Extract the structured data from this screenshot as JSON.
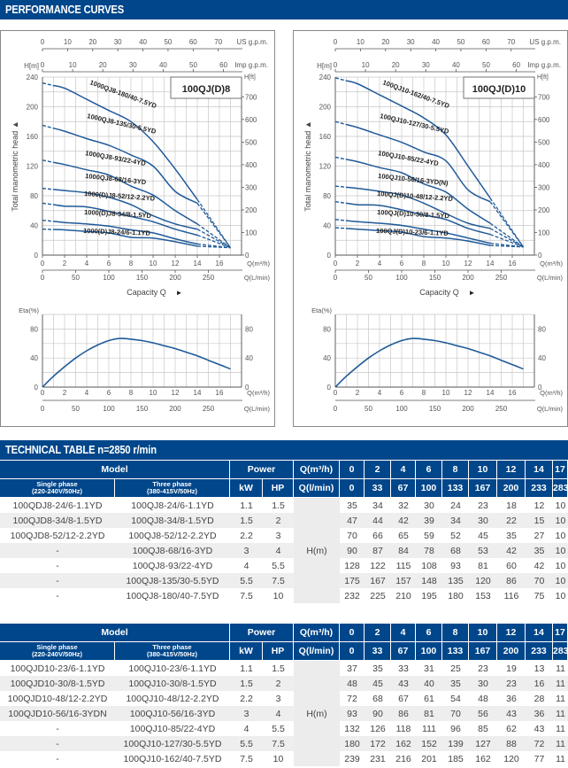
{
  "sections": {
    "performance_title": "PERFORMANCE CURVES",
    "technical_title": "TECHNICAL TABLE n=2850 r/min"
  },
  "chart_data": [
    {
      "type": "line",
      "title": "100QJ(D)8",
      "ylabel": "Total manometric head",
      "xlabel": "Capacity Q",
      "y_left_label": "H[m]",
      "y_right_label": "H[ft]",
      "ylim": [
        0,
        240
      ],
      "xlim": [
        0,
        18
      ],
      "y_ticks": [
        0,
        40,
        80,
        120,
        160,
        200,
        240
      ],
      "y_ft_ticks": [
        0,
        100,
        200,
        300,
        400,
        500,
        600,
        700
      ],
      "x_ticks_m3h": [
        0,
        2,
        4,
        6,
        8,
        10,
        12,
        14,
        16
      ],
      "x_ticks_lmin": [
        0,
        50,
        100,
        150,
        200,
        250
      ],
      "us_gpm_ticks": [
        0,
        10,
        20,
        30,
        40,
        50,
        60,
        70
      ],
      "imp_gpm_ticks": [
        0,
        10,
        20,
        30,
        40,
        50,
        60
      ],
      "axis_units": {
        "m3h": "Q(m³/h)",
        "lmin": "Q(L/min)",
        "us": "US g.p.m.",
        "imp": "Imp g.p.m."
      },
      "x": [
        0,
        2,
        4,
        6,
        8,
        10,
        12,
        14,
        17
      ],
      "series": [
        {
          "name": "1000QJ8-180/40-7.5YD",
          "values": [
            232,
            225,
            210,
            195,
            180,
            153,
            116,
            75,
            10
          ]
        },
        {
          "name": "1000QJ8-135/30-5.5YD",
          "values": [
            175,
            167,
            157,
            148,
            135,
            120,
            86,
            70,
            10
          ]
        },
        {
          "name": "1000QJ8-93/22-4YD",
          "values": [
            128,
            122,
            115,
            108,
            93,
            81,
            60,
            42,
            10
          ]
        },
        {
          "name": "1000QJ8-68/16-3YD",
          "values": [
            90,
            87,
            84,
            78,
            68,
            53,
            42,
            35,
            10
          ]
        },
        {
          "name": "1000(D)J8-52/12-2.2YD",
          "values": [
            70,
            66,
            65,
            59,
            52,
            45,
            35,
            27,
            10
          ]
        },
        {
          "name": "1000(D)J8-34/8-1.5YD",
          "values": [
            47,
            44,
            42,
            39,
            34,
            30,
            22,
            15,
            10
          ]
        },
        {
          "name": "1000(D)J8-24/6-1.1YD",
          "values": [
            35,
            34,
            32,
            30,
            24,
            23,
            18,
            12,
            10
          ]
        }
      ],
      "efficiency": {
        "ylabel": "Eta(%)",
        "ylim": [
          0,
          100
        ],
        "y_ticks": [
          0,
          40,
          80
        ],
        "x": [
          0,
          1,
          2,
          3,
          4,
          5,
          6,
          7,
          8,
          9,
          10,
          11,
          12,
          13,
          14,
          15,
          16,
          17
        ],
        "values": [
          0,
          15,
          28,
          40,
          50,
          58,
          64,
          67,
          66,
          64,
          61,
          57,
          53,
          48,
          43,
          37,
          31,
          25
        ]
      }
    },
    {
      "type": "line",
      "title": "100QJ(D)10",
      "ylabel": "Total manometric head",
      "xlabel": "Capacity Q",
      "y_left_label": "H[m]",
      "y_right_label": "H[ft]",
      "ylim": [
        0,
        240
      ],
      "xlim": [
        0,
        18
      ],
      "y_ticks": [
        0,
        40,
        80,
        120,
        160,
        200,
        240
      ],
      "y_ft_ticks": [
        0,
        100,
        200,
        300,
        400,
        500,
        600,
        700
      ],
      "x_ticks_m3h": [
        0,
        2,
        4,
        6,
        8,
        10,
        12,
        14,
        16
      ],
      "x_ticks_lmin": [
        0,
        50,
        100,
        150,
        200,
        250
      ],
      "us_gpm_ticks": [
        0,
        10,
        20,
        30,
        40,
        50,
        60,
        70
      ],
      "imp_gpm_ticks": [
        0,
        10,
        20,
        30,
        40,
        50,
        60
      ],
      "axis_units": {
        "m3h": "Q(m³/h)",
        "lmin": "Q(L/min)",
        "us": "US g.p.m.",
        "imp": "Imp g.p.m."
      },
      "x": [
        0,
        2,
        4,
        6,
        8,
        10,
        12,
        14,
        17
      ],
      "series": [
        {
          "name": "100QJ10-162/40-7.5YD",
          "values": [
            239,
            231,
            216,
            201,
            185,
            162,
            120,
            77,
            11
          ]
        },
        {
          "name": "100QJ10-127/30-5.5YD",
          "values": [
            180,
            172,
            162,
            152,
            139,
            127,
            88,
            72,
            11
          ]
        },
        {
          "name": "100QJ10-85/22-4YD",
          "values": [
            132,
            126,
            118,
            111,
            96,
            85,
            62,
            43,
            11
          ]
        },
        {
          "name": "100QJ10-56/16-3YD(N)",
          "values": [
            93,
            90,
            86,
            81,
            70,
            56,
            43,
            36,
            11
          ]
        },
        {
          "name": "100QJ(D)10-48/12-2.2YD",
          "values": [
            72,
            68,
            67,
            61,
            54,
            48,
            36,
            28,
            11
          ]
        },
        {
          "name": "100QJ(D)10-30/8-1.5YD",
          "values": [
            48,
            45,
            43,
            40,
            35,
            30,
            23,
            16,
            11
          ]
        },
        {
          "name": "100QJ(D)10-23/6-1.1YD",
          "values": [
            37,
            35,
            33,
            31,
            25,
            23,
            19,
            13,
            11
          ]
        }
      ],
      "efficiency": {
        "ylabel": "Eta(%)",
        "ylim": [
          0,
          100
        ],
        "y_ticks": [
          0,
          40,
          80
        ],
        "x": [
          0,
          1,
          2,
          3,
          4,
          5,
          6,
          7,
          8,
          9,
          10,
          11,
          12,
          13,
          14,
          15,
          16,
          17
        ],
        "values": [
          0,
          15,
          28,
          40,
          50,
          58,
          64,
          67,
          66,
          64,
          61,
          57,
          53,
          48,
          43,
          37,
          31,
          25
        ]
      }
    }
  ],
  "tables": [
    {
      "headers": {
        "model": "Model",
        "power": "Power",
        "q_m3h": "Q(m³/h)",
        "q_lmin": "Q(l/min)",
        "single": "Single phase",
        "single_sub": "(220-240V/50Hz)",
        "three": "Three phase",
        "three_sub": "(380-415V/50Hz)",
        "kw": "kW",
        "hp": "HP",
        "flow_m3h": [
          "0",
          "2",
          "4",
          "6",
          "8",
          "10",
          "12",
          "14",
          "17"
        ],
        "flow_lmin": [
          "0",
          "33",
          "67",
          "100",
          "133",
          "167",
          "200",
          "233",
          "283"
        ]
      },
      "unit": "H(m)",
      "rows": [
        {
          "single": "100QDJ8-24/6-1.1YD",
          "three": "100QJ8-24/6-1.1YD",
          "kw": "1.1",
          "hp": "1.5",
          "h": [
            "35",
            "34",
            "32",
            "30",
            "24",
            "23",
            "18",
            "12",
            "10"
          ]
        },
        {
          "single": "100QJD8-34/8-1.5YD",
          "three": "100QJ8-34/8-1.5YD",
          "kw": "1.5",
          "hp": "2",
          "h": [
            "47",
            "44",
            "42",
            "39",
            "34",
            "30",
            "22",
            "15",
            "10"
          ]
        },
        {
          "single": "100QJD8-52/12-2.2YD",
          "three": "100QJ8-52/12-2.2YD",
          "kw": "2.2",
          "hp": "3",
          "h": [
            "70",
            "66",
            "65",
            "59",
            "52",
            "45",
            "35",
            "27",
            "10"
          ]
        },
        {
          "single": "-",
          "three": "100QJ8-68/16-3YD",
          "kw": "3",
          "hp": "4",
          "h": [
            "90",
            "87",
            "84",
            "78",
            "68",
            "53",
            "42",
            "35",
            "10"
          ]
        },
        {
          "single": "-",
          "three": "100QJ8-93/22-4YD",
          "kw": "4",
          "hp": "5.5",
          "h": [
            "128",
            "122",
            "115",
            "108",
            "93",
            "81",
            "60",
            "42",
            "10"
          ]
        },
        {
          "single": "-",
          "three": "100QJ8-135/30-5.5YD",
          "kw": "5.5",
          "hp": "7.5",
          "h": [
            "175",
            "167",
            "157",
            "148",
            "135",
            "120",
            "86",
            "70",
            "10"
          ]
        },
        {
          "single": "-",
          "three": "100QJ8-180/40-7.5YD",
          "kw": "7.5",
          "hp": "10",
          "h": [
            "232",
            "225",
            "210",
            "195",
            "180",
            "153",
            "116",
            "75",
            "10"
          ]
        }
      ]
    },
    {
      "headers": {
        "model": "Model",
        "power": "Power",
        "q_m3h": "Q(m³/h)",
        "q_lmin": "Q(l/min)",
        "single": "Single phase",
        "single_sub": "(220-240V/50Hz)",
        "three": "Three phase",
        "three_sub": "(380-415V/50Hz)",
        "kw": "kW",
        "hp": "HP",
        "flow_m3h": [
          "0",
          "2",
          "4",
          "6",
          "8",
          "10",
          "12",
          "14",
          "17"
        ],
        "flow_lmin": [
          "0",
          "33",
          "67",
          "100",
          "133",
          "167",
          "200",
          "233",
          "283"
        ]
      },
      "unit": "H(m)",
      "rows": [
        {
          "single": "100QJD10-23/6-1.1YD",
          "three": "100QJ10-23/6-1.1YD",
          "kw": "1.1",
          "hp": "1.5",
          "h": [
            "37",
            "35",
            "33",
            "31",
            "25",
            "23",
            "19",
            "13",
            "11"
          ]
        },
        {
          "single": "100QJD10-30/8-1.5YD",
          "three": "100QJ10-30/8-1.5YD",
          "kw": "1.5",
          "hp": "2",
          "h": [
            "48",
            "45",
            "43",
            "40",
            "35",
            "30",
            "23",
            "16",
            "11"
          ]
        },
        {
          "single": "100QJD10-48/12-2.2YD",
          "three": "100QJ10-48/12-2.2YD",
          "kw": "2.2",
          "hp": "3",
          "h": [
            "72",
            "68",
            "67",
            "61",
            "54",
            "48",
            "36",
            "28",
            "11"
          ]
        },
        {
          "single": "100QJD10-56/16-3YDN",
          "three": "100QJ10-56/16-3YD",
          "kw": "3",
          "hp": "4",
          "h": [
            "93",
            "90",
            "86",
            "81",
            "70",
            "56",
            "43",
            "36",
            "11"
          ]
        },
        {
          "single": "-",
          "three": "100QJ10-85/22-4YD",
          "kw": "4",
          "hp": "5.5",
          "h": [
            "132",
            "126",
            "118",
            "111",
            "96",
            "85",
            "62",
            "43",
            "11"
          ]
        },
        {
          "single": "-",
          "three": "100QJ10-127/30-5.5YD",
          "kw": "5.5",
          "hp": "7.5",
          "h": [
            "180",
            "172",
            "162",
            "152",
            "139",
            "127",
            "88",
            "72",
            "11"
          ]
        },
        {
          "single": "-",
          "three": "100QJ10-162/40-7.5YD",
          "kw": "7.5",
          "hp": "10",
          "h": [
            "239",
            "231",
            "216",
            "201",
            "185",
            "162",
            "120",
            "77",
            "11"
          ]
        }
      ]
    }
  ],
  "colors": {
    "brand": "#00468a",
    "curve": "#1f5a99",
    "grid": "#c8c8c8",
    "axis": "#555555"
  }
}
